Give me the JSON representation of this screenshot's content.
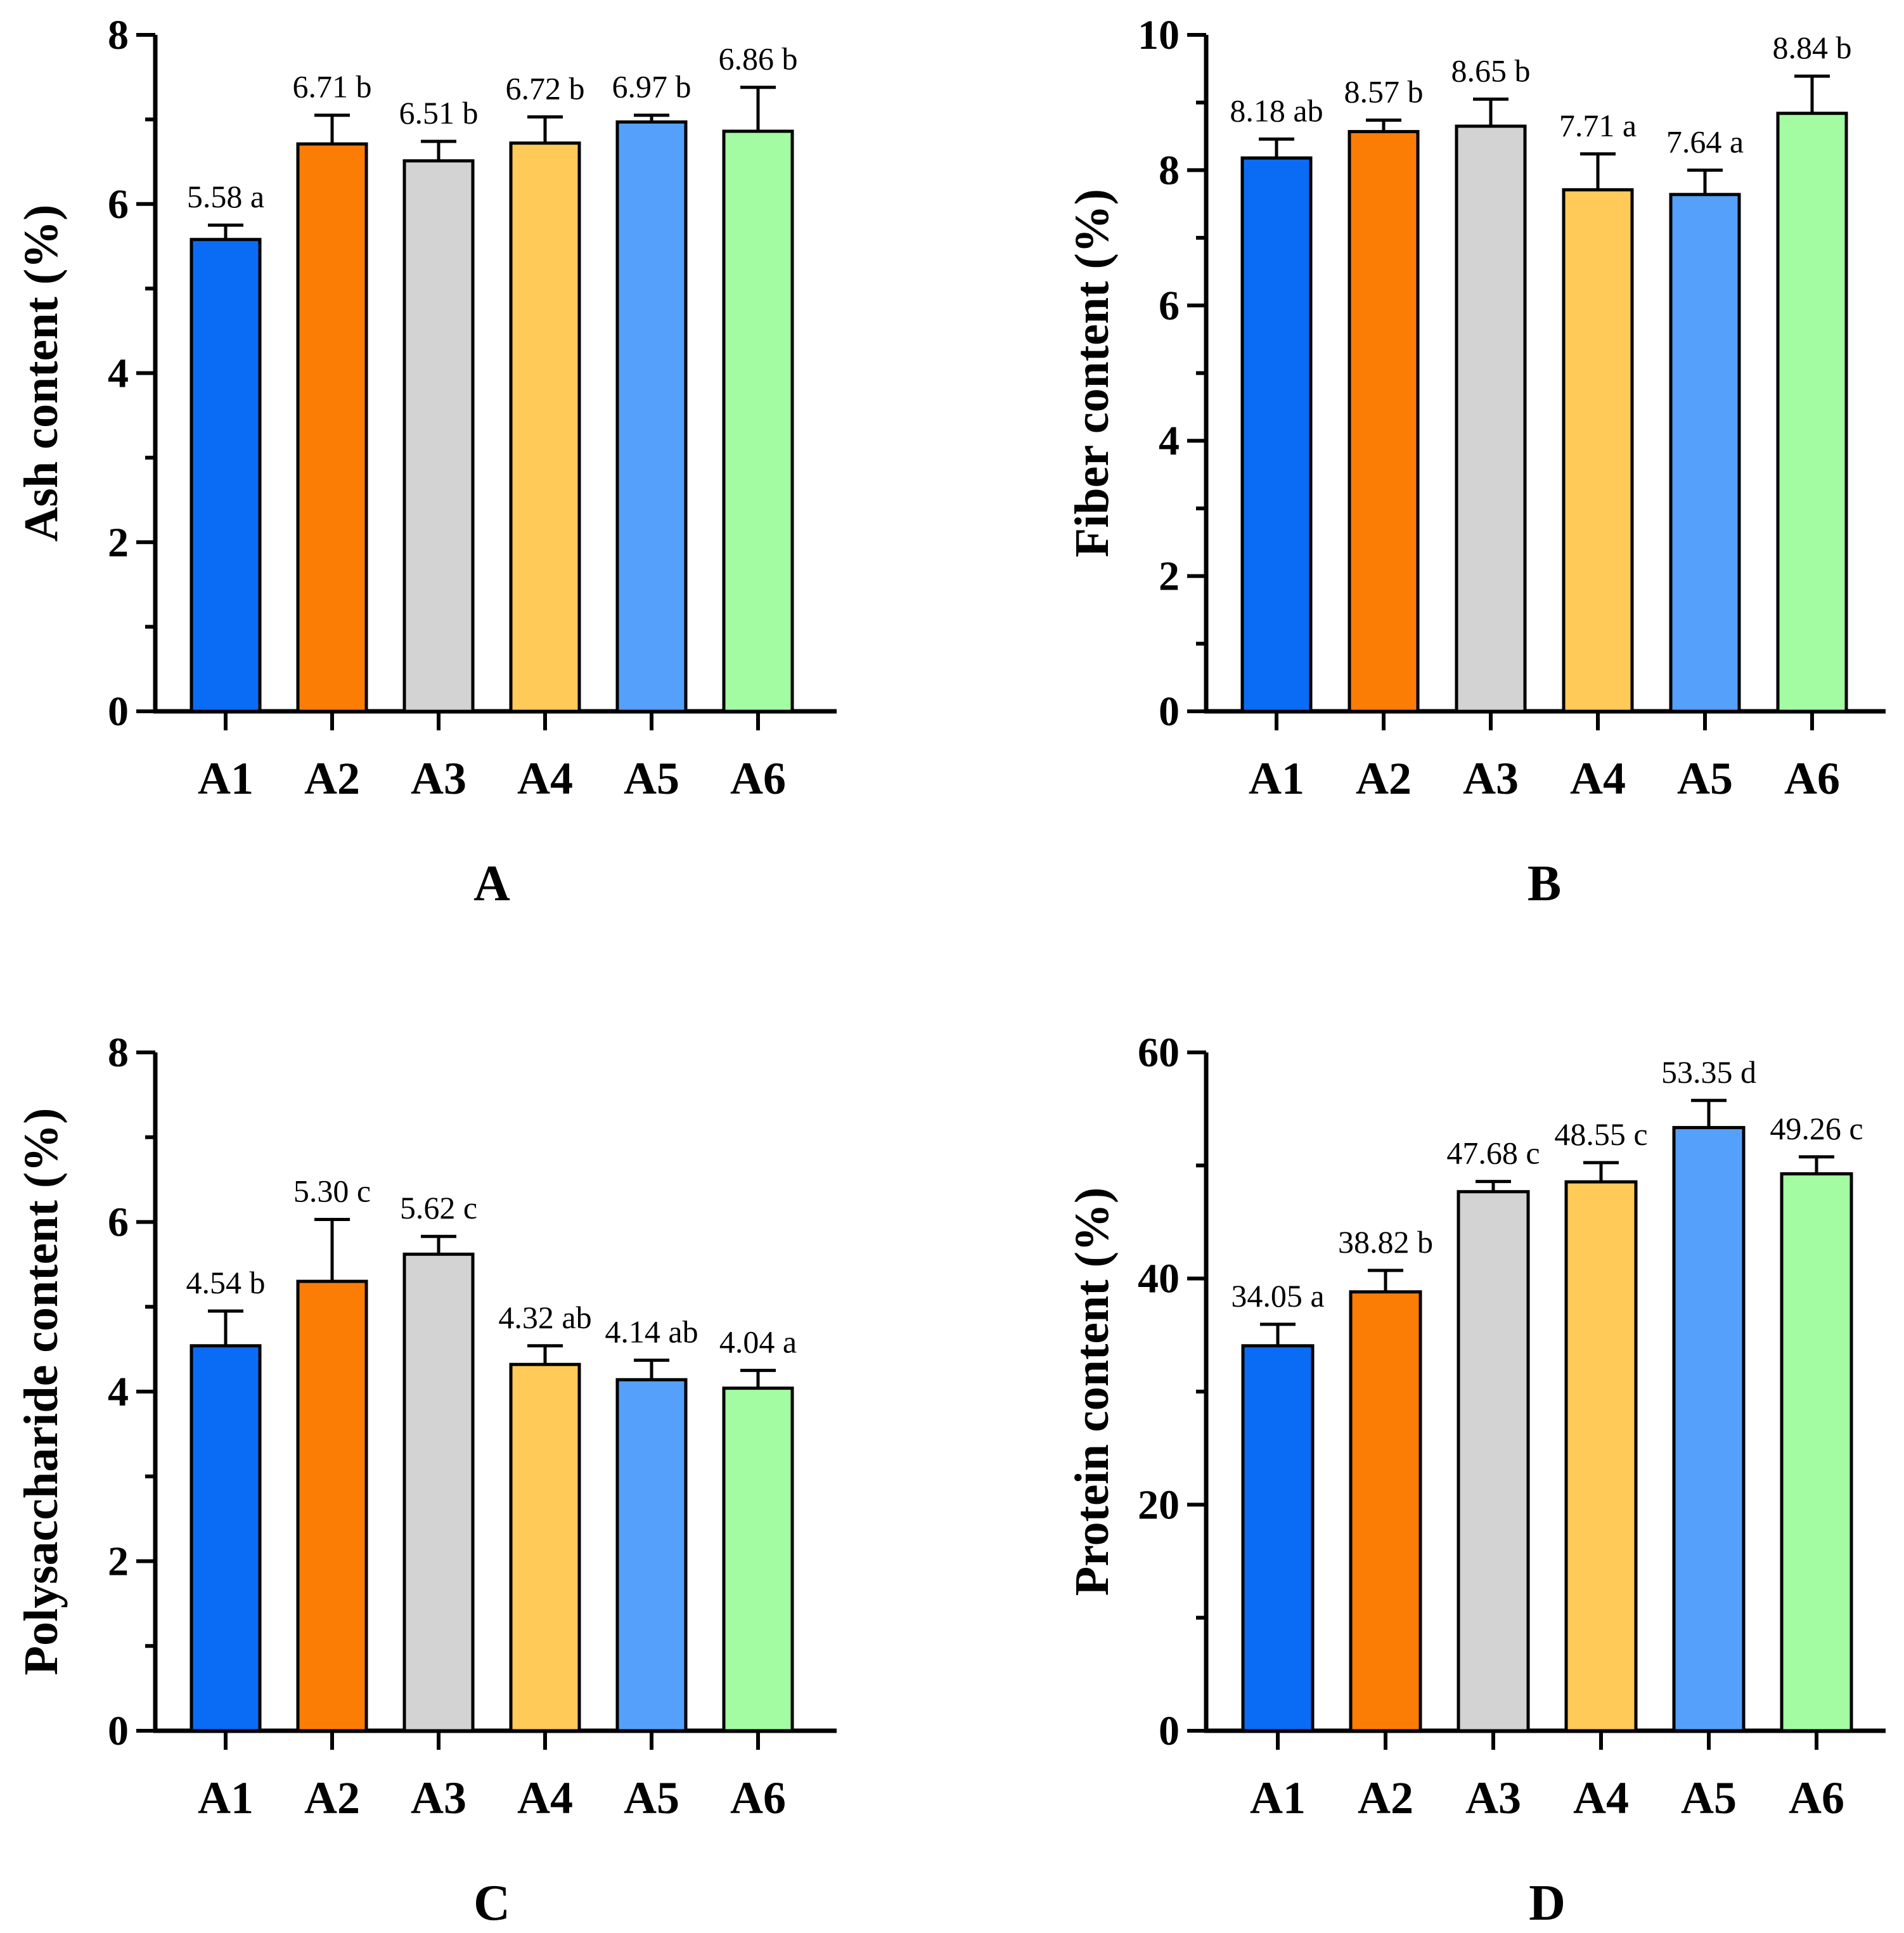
{
  "chart_data": [
    {
      "panel": "A",
      "type": "bar",
      "title": "A",
      "ylabel": "Ash content (%)",
      "categories": [
        "A1",
        "A2",
        "A3",
        "A4",
        "A5",
        "A6"
      ],
      "values": [
        5.58,
        6.71,
        6.51,
        6.72,
        6.97,
        6.86
      ],
      "errors": [
        0.17,
        0.34,
        0.23,
        0.31,
        0.08,
        0.52
      ],
      "labels": [
        "5.58 a",
        "6.71 b",
        "6.51 b",
        "6.72 b",
        "6.97 b",
        "6.86 b"
      ],
      "ylim": [
        0,
        8
      ],
      "yticks": [
        0,
        2,
        4,
        6,
        8
      ],
      "minor_step": 1
    },
    {
      "panel": "B",
      "type": "bar",
      "title": "B",
      "ylabel": "Fiber content (%)",
      "categories": [
        "A1",
        "A2",
        "A3",
        "A4",
        "A5",
        "A6"
      ],
      "values": [
        8.18,
        8.57,
        8.65,
        7.71,
        7.64,
        8.84
      ],
      "errors": [
        0.28,
        0.17,
        0.4,
        0.53,
        0.36,
        0.55
      ],
      "labels": [
        "8.18 ab",
        "8.57 b",
        "8.65 b",
        "7.71 a",
        "7.64 a",
        "8.84 b"
      ],
      "ylim": [
        0,
        10
      ],
      "yticks": [
        0,
        2,
        4,
        6,
        8,
        10
      ],
      "minor_step": 1
    },
    {
      "panel": "C",
      "type": "bar",
      "title": "C",
      "ylabel": "Polysaccharide content (%)",
      "categories": [
        "A1",
        "A2",
        "A3",
        "A4",
        "A5",
        "A6"
      ],
      "values": [
        4.54,
        5.3,
        5.62,
        4.32,
        4.14,
        4.04
      ],
      "errors": [
        0.41,
        0.73,
        0.21,
        0.22,
        0.23,
        0.21
      ],
      "labels": [
        "4.54 b",
        "5.30 c",
        "5.62 c",
        "4.32 ab",
        "4.14 ab",
        "4.04 a"
      ],
      "ylim": [
        0,
        8
      ],
      "yticks": [
        0,
        2,
        4,
        6,
        8
      ],
      "minor_step": 1
    },
    {
      "panel": "D",
      "type": "bar",
      "title": "D",
      "ylabel": "Protein content (%)",
      "categories": [
        "A1",
        "A2",
        "A3",
        "A4",
        "A5",
        "A6"
      ],
      "values": [
        34.05,
        38.82,
        47.68,
        48.55,
        53.35,
        49.26
      ],
      "errors": [
        1.9,
        1.9,
        0.9,
        1.7,
        2.4,
        1.5
      ],
      "labels": [
        "34.05 a",
        "38.82 b",
        "47.68 c",
        "48.55 c",
        "53.35 d",
        "49.26 c"
      ],
      "ylim": [
        0,
        60
      ],
      "yticks": [
        0,
        20,
        40,
        60
      ],
      "minor_step": 10
    }
  ],
  "colors": {
    "A1": "#0a6cf5",
    "A2": "#fc7d06",
    "A3": "#d3d3d3",
    "A4": "#ffca58",
    "A5": "#55a0fb",
    "A6": "#a3fca1"
  }
}
